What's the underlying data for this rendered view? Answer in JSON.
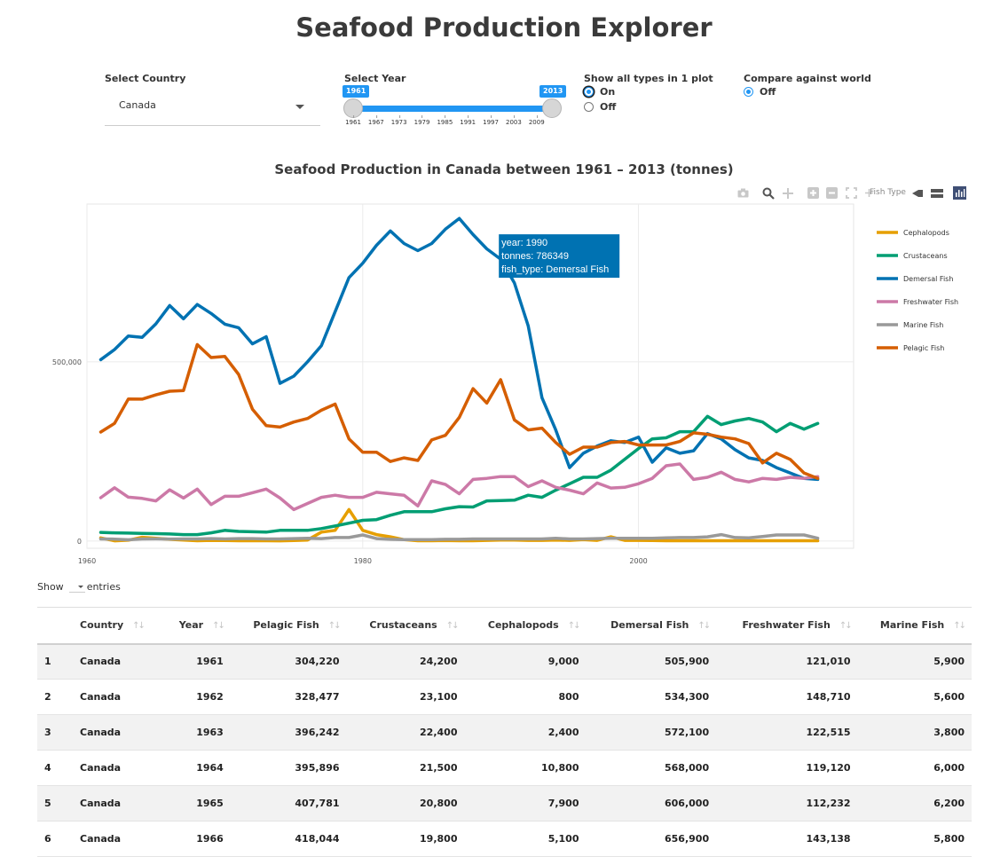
{
  "app": {
    "title": "Seafood Production Explorer"
  },
  "controls": {
    "country": {
      "label": "Select Country",
      "value": "Canada"
    },
    "year": {
      "label": "Select Year",
      "min_badge": "1961",
      "max_badge": "2013",
      "from": 1961,
      "to": 2013,
      "ticks": [
        "1961",
        "1967",
        "1973",
        "1979",
        "1985",
        "1991",
        "1997",
        "2003",
        "2009"
      ]
    },
    "all_types": {
      "label": "Show all types in 1 plot",
      "options": [
        "On",
        "Off"
      ],
      "selected": "On"
    },
    "compare_world": {
      "label": "Compare against world",
      "options": [
        "Off"
      ],
      "selected": "Off"
    }
  },
  "modebar": {
    "legend_title_overlap": "Fish Type"
  },
  "chart_data": {
    "type": "line",
    "title": "Seafood Production in Canada between 1961 – 2013 (tonnes)",
    "xlabel": "",
    "ylabel": "",
    "xlim": [
      1960,
      2015.6
    ],
    "ylim": [
      -20000,
      940000
    ],
    "x_ticks": [
      1960,
      1980,
      2000
    ],
    "x_tick_labels": [
      "1960",
      "1980",
      "2000"
    ],
    "y_ticks": [
      0,
      500000
    ],
    "y_tick_labels": [
      "0",
      "500,000"
    ],
    "grid": true,
    "legend_position": "right",
    "x": [
      1961,
      1962,
      1963,
      1964,
      1965,
      1966,
      1967,
      1968,
      1969,
      1970,
      1971,
      1972,
      1973,
      1974,
      1975,
      1976,
      1977,
      1978,
      1979,
      1980,
      1981,
      1982,
      1983,
      1984,
      1985,
      1986,
      1987,
      1988,
      1989,
      1990,
      1991,
      1992,
      1993,
      1994,
      1995,
      1996,
      1997,
      1998,
      1999,
      2000,
      2001,
      2002,
      2003,
      2004,
      2005,
      2006,
      2007,
      2008,
      2009,
      2010,
      2011,
      2012,
      2013
    ],
    "series": [
      {
        "name": "Cephalopods",
        "color": "#e69f00",
        "values": [
          9000,
          800,
          2400,
          10800,
          7900,
          5100,
          3000,
          1000,
          2000,
          1500,
          1000,
          1000,
          1000,
          800,
          1500,
          3000,
          25000,
          30000,
          88000,
          30000,
          18000,
          12000,
          4000,
          1000,
          1000,
          1500,
          1000,
          1000,
          2000,
          3000,
          3000,
          2000,
          2000,
          3000,
          2000,
          4000,
          2000,
          12000,
          2000,
          2000,
          1500,
          1000,
          1000,
          1000,
          1000,
          1000,
          1000,
          1000,
          1000,
          1000,
          1000,
          1000,
          1000
        ]
      },
      {
        "name": "Crustaceans",
        "color": "#009e73",
        "values": [
          24200,
          23100,
          22400,
          21500,
          20800,
          19800,
          18000,
          18000,
          23000,
          30000,
          27000,
          26000,
          25000,
          30000,
          30000,
          30000,
          35000,
          42000,
          50000,
          58000,
          60000,
          72000,
          82000,
          82000,
          82000,
          90000,
          96000,
          95000,
          112000,
          113000,
          114000,
          128000,
          122000,
          142000,
          160000,
          178000,
          178000,
          198000,
          228000,
          258000,
          285000,
          288000,
          305000,
          305000,
          348000,
          325000,
          335000,
          342000,
          332000,
          305000,
          328000,
          312000,
          328000
        ]
      },
      {
        "name": "Demersal Fish",
        "color": "#0072b2",
        "values": [
          505900,
          534300,
          572100,
          568000,
          606000,
          656900,
          620000,
          660000,
          635000,
          605000,
          595000,
          550000,
          570000,
          440000,
          460000,
          500000,
          545000,
          640000,
          735000,
          775000,
          825000,
          865000,
          830000,
          810000,
          830000,
          870000,
          900000,
          855000,
          815000,
          786349,
          720000,
          600000,
          400000,
          310000,
          205000,
          245000,
          265000,
          280000,
          275000,
          290000,
          220000,
          260000,
          245000,
          252000,
          300000,
          285000,
          255000,
          232000,
          225000,
          205000,
          190000,
          175000,
          172000
        ]
      },
      {
        "name": "Freshwater Fish",
        "color": "#cc79a7",
        "values": [
          121010,
          148710,
          122515,
          119120,
          112232,
          143138,
          120000,
          145000,
          102000,
          125000,
          125000,
          135000,
          145000,
          120000,
          88000,
          105000,
          122000,
          128000,
          122000,
          122000,
          136000,
          132000,
          128000,
          98000,
          168000,
          158000,
          132000,
          172000,
          175000,
          180000,
          180000,
          152000,
          168000,
          150000,
          142000,
          132000,
          162000,
          148000,
          150000,
          160000,
          175000,
          210000,
          215000,
          172000,
          178000,
          192000,
          172000,
          165000,
          175000,
          172000,
          178000,
          175000,
          180000
        ]
      },
      {
        "name": "Marine Fish",
        "color": "#999999",
        "values": [
          5900,
          5600,
          3800,
          6000,
          6200,
          5800,
          6000,
          6000,
          7000,
          6000,
          7000,
          7000,
          6000,
          6000,
          7000,
          8000,
          7000,
          10000,
          10000,
          17000,
          7000,
          5000,
          4000,
          4000,
          4000,
          5000,
          5000,
          6000,
          6000,
          6000,
          6000,
          6000,
          6000,
          8000,
          6000,
          6000,
          7000,
          8000,
          8000,
          8000,
          8000,
          9000,
          10000,
          10000,
          12000,
          18000,
          10000,
          9000,
          13000,
          17000,
          17000,
          17000,
          8000
        ]
      },
      {
        "name": "Pelagic Fish",
        "color": "#d55e00",
        "values": [
          304220,
          328477,
          396242,
          395896,
          407781,
          418044,
          420000,
          548000,
          512000,
          515000,
          465000,
          368000,
          322000,
          318000,
          332000,
          342000,
          365000,
          382000,
          285000,
          248000,
          248000,
          222000,
          232000,
          225000,
          282000,
          295000,
          345000,
          425000,
          385000,
          450000,
          338000,
          310000,
          315000,
          275000,
          242000,
          262000,
          262000,
          275000,
          278000,
          268000,
          268000,
          268000,
          278000,
          302000,
          298000,
          290000,
          285000,
          272000,
          218000,
          245000,
          228000,
          190000,
          175000
        ]
      }
    ],
    "tooltip": {
      "lines": [
        "year: 1990",
        "tonnes: 786349",
        "fish_type: Demersal Fish"
      ]
    }
  },
  "table": {
    "show_label": "Show",
    "entries_label": "entries",
    "columns": [
      "",
      "Country",
      "Year",
      "Pelagic Fish",
      "Crustaceans",
      "Cephalopods",
      "Demersal Fish",
      "Freshwater Fish",
      "Marine Fish"
    ],
    "rows": [
      [
        "1",
        "Canada",
        "1961",
        "304,220",
        "24,200",
        "9,000",
        "505,900",
        "121,010",
        "5,900"
      ],
      [
        "2",
        "Canada",
        "1962",
        "328,477",
        "23,100",
        "800",
        "534,300",
        "148,710",
        "5,600"
      ],
      [
        "3",
        "Canada",
        "1963",
        "396,242",
        "22,400",
        "2,400",
        "572,100",
        "122,515",
        "3,800"
      ],
      [
        "4",
        "Canada",
        "1964",
        "395,896",
        "21,500",
        "10,800",
        "568,000",
        "119,120",
        "6,000"
      ],
      [
        "5",
        "Canada",
        "1965",
        "407,781",
        "20,800",
        "7,900",
        "606,000",
        "112,232",
        "6,200"
      ],
      [
        "6",
        "Canada",
        "1966",
        "418,044",
        "19,800",
        "5,100",
        "656,900",
        "143,138",
        "5,800"
      ]
    ]
  }
}
